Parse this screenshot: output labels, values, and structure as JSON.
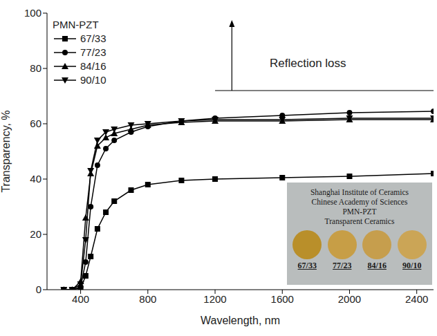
{
  "chart_data": {
    "type": "line",
    "x_label": "Wavelength, nm",
    "y_label": "Transparency, %",
    "legend_title": "PMN-PZT",
    "legend": "upper left",
    "x": [
      300,
      350,
      400,
      430,
      460,
      500,
      550,
      600,
      700,
      800,
      1000,
      1200,
      1600,
      2000,
      2500
    ],
    "series": [
      {
        "name": "67/33",
        "color": "#000000",
        "marker": "square",
        "values": [
          0,
          0,
          0.5,
          5,
          12,
          22,
          28,
          32,
          36,
          38,
          39.5,
          40,
          40.5,
          41,
          42
        ]
      },
      {
        "name": "77/23",
        "color": "#000000",
        "marker": "circle",
        "values": [
          0,
          0,
          1,
          10,
          30,
          45,
          51,
          54,
          57,
          59,
          61,
          62,
          63,
          64,
          64.5
        ]
      },
      {
        "name": "84/16",
        "color": "#000000",
        "marker": "triangle",
        "values": [
          0,
          0,
          3,
          26,
          42,
          52,
          55,
          56.5,
          58,
          59.5,
          60.5,
          61,
          61,
          61.5,
          61.5
        ]
      },
      {
        "name": "90/10",
        "color": "#000000",
        "marker": "triangle-down",
        "values": [
          0,
          0,
          2,
          18,
          43,
          54,
          57,
          58,
          59.5,
          60,
          61,
          61.5,
          61.5,
          62,
          62
        ]
      }
    ],
    "xlim": [
      200,
      2500
    ],
    "xticks": [
      400,
      800,
      1200,
      1600,
      2000,
      2400
    ],
    "ylim": [
      0,
      100
    ],
    "yticks": [
      0,
      20,
      40,
      60,
      80,
      100
    ],
    "annotations": [
      {
        "text": "Reflection loss",
        "y": 72,
        "x_from": 1200,
        "x_to": 2500,
        "arrow_x": 1300,
        "arrow_to": 97
      }
    ],
    "inset": {
      "lines": [
        "Shanghai Institute of Ceramics",
        "Chinese Academy of Sciences",
        "PMN-PZT",
        "Transparent Ceramics"
      ],
      "labels": [
        "67/33",
        "77/23",
        "84/16",
        "90/10"
      ]
    }
  }
}
